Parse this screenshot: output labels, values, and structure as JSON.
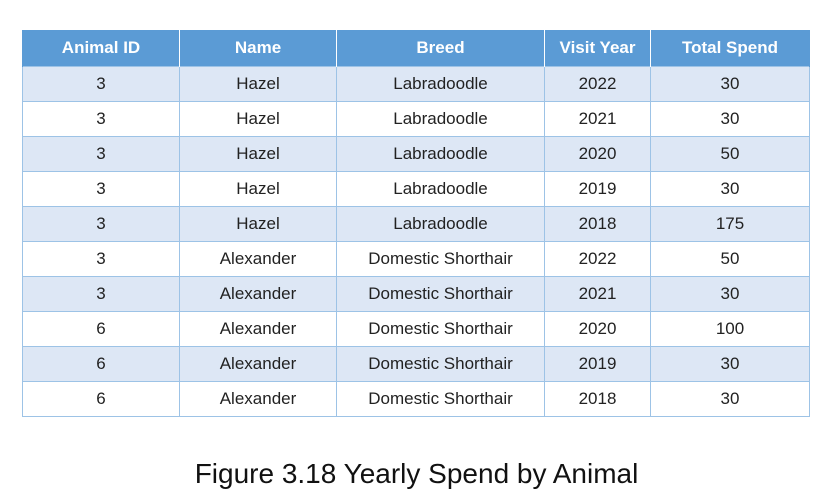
{
  "table": {
    "headers": [
      "Animal ID",
      "Name",
      "Breed",
      "Visit Year",
      "Total Spend"
    ],
    "rows": [
      [
        "3",
        "Hazel",
        "Labradoodle",
        "2022",
        "30"
      ],
      [
        "3",
        "Hazel",
        "Labradoodle",
        "2021",
        "30"
      ],
      [
        "3",
        "Hazel",
        "Labradoodle",
        "2020",
        "50"
      ],
      [
        "3",
        "Hazel",
        "Labradoodle",
        "2019",
        "30"
      ],
      [
        "3",
        "Hazel",
        "Labradoodle",
        "2018",
        "175"
      ],
      [
        "3",
        "Alexander",
        "Domestic Shorthair",
        "2022",
        "50"
      ],
      [
        "3",
        "Alexander",
        "Domestic Shorthair",
        "2021",
        "30"
      ],
      [
        "6",
        "Alexander",
        "Domestic Shorthair",
        "2020",
        "100"
      ],
      [
        "6",
        "Alexander",
        "Domestic Shorthair",
        "2019",
        "30"
      ],
      [
        "6",
        "Alexander",
        "Domestic Shorthair",
        "2018",
        "30"
      ]
    ]
  },
  "caption": "Figure 3.18 Yearly Spend by Animal",
  "colors": {
    "header_bg": "#5b9bd5",
    "band_light": "#dde7f5",
    "border": "#9dc3e6"
  }
}
